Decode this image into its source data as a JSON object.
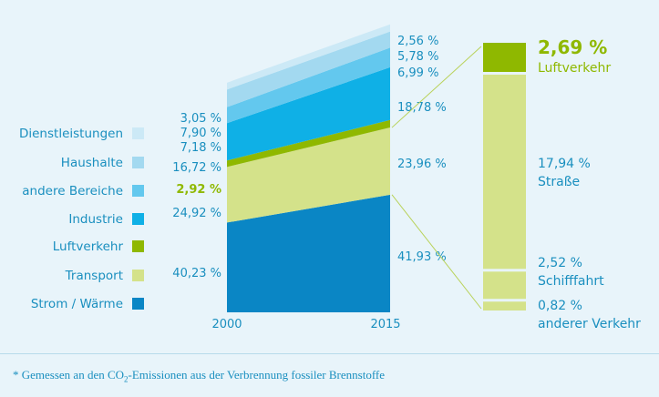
{
  "chart_data": {
    "type": "area",
    "x": [
      "2000",
      "2015"
    ],
    "series": [
      {
        "name": "Strom / Wärme",
        "values": [
          40.23,
          41.93
        ],
        "labels": [
          "40,23 %",
          "41,93 %"
        ],
        "color": "#0a86c5"
      },
      {
        "name": "Transport",
        "values": [
          24.92,
          23.96
        ],
        "labels": [
          "24,92 %",
          "23,96 %"
        ],
        "color": "#d4e28a"
      },
      {
        "name": "Luftverkehr",
        "values": [
          2.92,
          2.69
        ],
        "labels": [
          "2,92 %",
          ""
        ],
        "color": "#8fb800",
        "highlight": true
      },
      {
        "name": "Industrie",
        "values": [
          16.72,
          18.78
        ],
        "labels": [
          "16,72 %",
          "18,78 %"
        ],
        "color": "#0fb0e6"
      },
      {
        "name": "andere Bereiche",
        "values": [
          7.18,
          6.99
        ],
        "labels": [
          "7,18 %",
          "6,99 %"
        ],
        "color": "#63c8ee"
      },
      {
        "name": "Haushalte",
        "values": [
          7.9,
          5.78
        ],
        "labels": [
          "7,90 %",
          "5,78 %"
        ],
        "color": "#a3d9f0"
      },
      {
        "name": "Dienstleistungen",
        "values": [
          3.05,
          2.56
        ],
        "labels": [
          "3,05 %",
          "2,56 %"
        ],
        "color": "#cce9f6"
      }
    ],
    "transport_breakdown": [
      {
        "name": "Luftverkehr",
        "value": 2.69,
        "label": "2,69 %",
        "color": "#8fb800",
        "highlight": true
      },
      {
        "name": "Straße",
        "value": 17.94,
        "label": "17,94 %",
        "color": "#d4e28a"
      },
      {
        "name": "Schifffahrt",
        "value": 2.52,
        "label": "2,52 %",
        "color": "#d4e28a"
      },
      {
        "name": "anderer Verkehr",
        "value": 0.82,
        "label": "0,82 %",
        "color": "#d4e28a"
      }
    ],
    "legend_order": [
      "Dienstleistungen",
      "Haushalte",
      "andere Bereiche",
      "Industrie",
      "Luftverkehr",
      "Transport",
      "Strom / Wärme"
    ],
    "legend_position": "left",
    "grid": false
  },
  "footer": {
    "prefix": "* Gemessen an den CO",
    "subscript": "2",
    "suffix": "-Emissionen aus der Verbrennung fossiler Brennstoffe"
  }
}
